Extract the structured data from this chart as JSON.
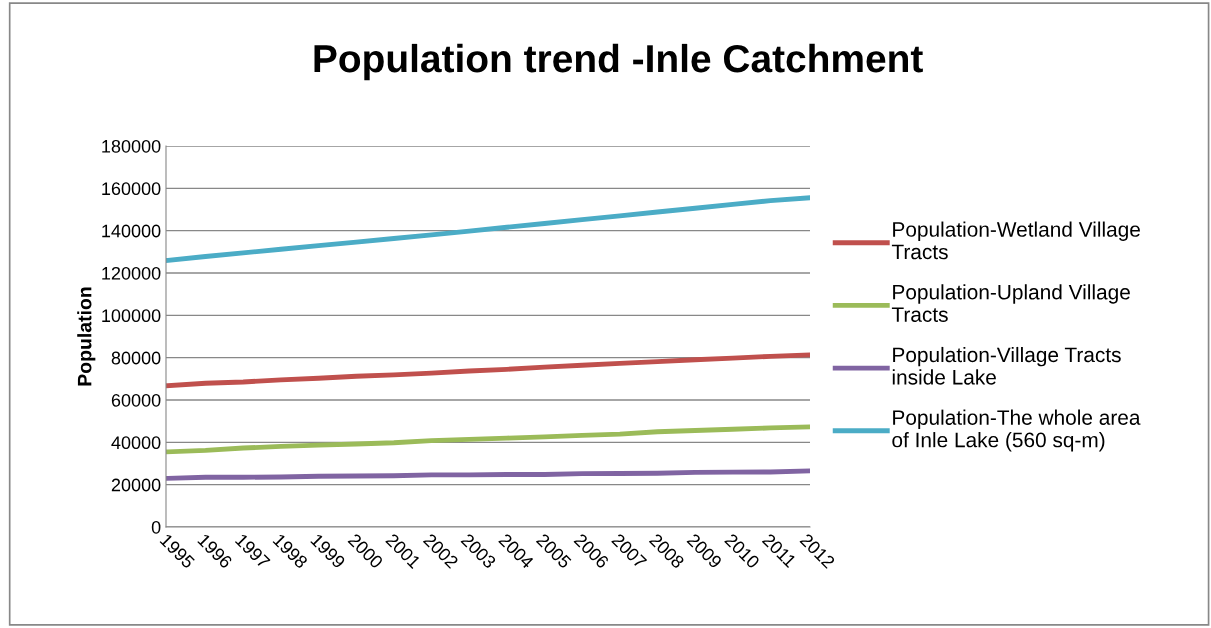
{
  "chart_data": {
    "type": "line",
    "title": "Population trend -Inle Catchment",
    "ylabel": "Population",
    "categories": [
      "1995",
      "1996",
      "1997",
      "1998",
      "1999",
      "2000",
      "2001",
      "2002",
      "2003",
      "2004",
      "2005",
      "2006",
      "2007",
      "2008",
      "2009",
      "2010",
      "2011",
      "2012"
    ],
    "series": [
      {
        "name": "Population-Wetland Village Tracts",
        "color": "#c0504d",
        "values": [
          66800,
          67900,
          68500,
          69500,
          70300,
          71200,
          71900,
          72700,
          73700,
          74500,
          75500,
          76400,
          77300,
          78100,
          79000,
          79800,
          80600,
          81300
        ]
      },
      {
        "name": "Population-Upland Village Tracts",
        "color": "#9bbb59",
        "values": [
          35500,
          36200,
          37300,
          38100,
          38700,
          39200,
          39800,
          40800,
          41400,
          42000,
          42600,
          43300,
          43900,
          45000,
          45600,
          46200,
          46800,
          47300
        ]
      },
      {
        "name": "Population-Village Tracts inside Lake",
        "color": "#8064a2",
        "values": [
          23000,
          23500,
          23500,
          23600,
          24000,
          24100,
          24200,
          24600,
          24600,
          24800,
          24800,
          25200,
          25300,
          25400,
          25800,
          25900,
          26000,
          26500
        ]
      },
      {
        "name": "Population-The whole area of Inle Lake (560 sq-m)",
        "color": "#4bacc6",
        "values": [
          126000,
          127800,
          129500,
          131200,
          132900,
          134600,
          136300,
          138000,
          139800,
          141600,
          143400,
          145200,
          147000,
          148800,
          150600,
          152400,
          154200,
          155500
        ]
      }
    ],
    "ylim": [
      0,
      180000
    ],
    "yticks": [
      0,
      20000,
      40000,
      60000,
      80000,
      100000,
      120000,
      140000,
      160000,
      180000
    ],
    "grid": "y",
    "legend": "right",
    "marker": "none",
    "line_style": "solid"
  }
}
